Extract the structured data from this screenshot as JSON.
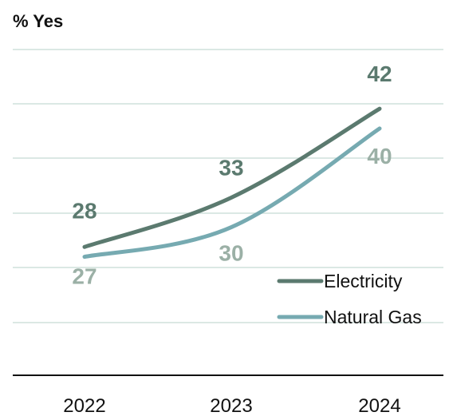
{
  "chart_data": {
    "type": "line",
    "ylabel": "% Yes",
    "x": [
      "2022",
      "2023",
      "2024"
    ],
    "ylim": [
      15,
      48
    ],
    "grid": true,
    "legend_position": "bottom-right",
    "series": [
      {
        "name": "Electricity",
        "values": [
          28,
          33,
          42
        ],
        "color": "#5b7a6f",
        "label_color": "#5b7a6f"
      },
      {
        "name": "Natural Gas",
        "values": [
          27,
          30,
          40
        ],
        "color": "#76aab1",
        "label_color": "#9bb0a6"
      }
    ]
  }
}
